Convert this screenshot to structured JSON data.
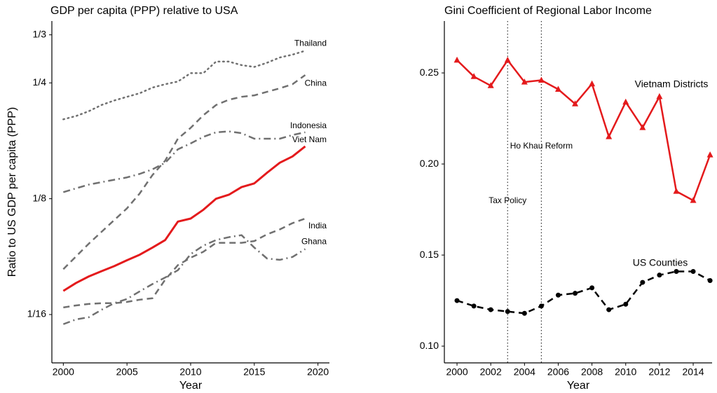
{
  "chart_data": [
    {
      "type": "line",
      "title": "GDP per capita (PPP) relative to USA",
      "xlabel": "Year",
      "ylabel": "Ratio to US GDP per capita (PPP)",
      "log_y": true,
      "x": [
        2000,
        2001,
        2002,
        2003,
        2004,
        2005,
        2006,
        2007,
        2008,
        2009,
        2010,
        2011,
        2012,
        2013,
        2014,
        2015,
        2016,
        2017,
        2018,
        2019
      ],
      "xlim": [
        1999.1,
        2020.9
      ],
      "xticks": [
        2000,
        2005,
        2010,
        2015,
        2020
      ],
      "ylim": [
        0.0468,
        0.362
      ],
      "yticks": [
        {
          "value": 0.0625,
          "label": "1/16"
        },
        {
          "value": 0.125,
          "label": "1/8"
        },
        {
          "value": 0.25,
          "label": "1/4"
        },
        {
          "value": 0.3333,
          "label": "1/3"
        }
      ],
      "series": [
        {
          "name": "Thailand",
          "color": "#707070",
          "label_color": "#333333",
          "linestyle": "dotted",
          "values": [
            0.201,
            0.205,
            0.211,
            0.219,
            0.225,
            0.23,
            0.235,
            0.243,
            0.248,
            0.252,
            0.265,
            0.265,
            0.284,
            0.284,
            0.278,
            0.275,
            0.282,
            0.291,
            0.296,
            0.303
          ]
        },
        {
          "name": "China",
          "color": "#707070",
          "label_color": "#333333",
          "linestyle": "dashed",
          "values": [
            0.082,
            0.0885,
            0.0955,
            0.1025,
            0.11,
            0.118,
            0.129,
            0.144,
            0.157,
            0.179,
            0.191,
            0.206,
            0.219,
            0.226,
            0.23,
            0.232,
            0.237,
            0.242,
            0.248,
            0.262
          ]
        },
        {
          "name": "Indonesia",
          "color": "#707070",
          "label_color": "#333333",
          "linestyle": "dashdot",
          "values": [
            0.13,
            0.133,
            0.136,
            0.138,
            0.14,
            0.142,
            0.145,
            0.149,
            0.155,
            0.168,
            0.174,
            0.181,
            0.186,
            0.187,
            0.185,
            0.179,
            0.179,
            0.179,
            0.183,
            0.186
          ]
        },
        {
          "name": "India",
          "color": "#707070",
          "label_color": "#333333",
          "linestyle": "dashed",
          "values": [
            0.0652,
            0.066,
            0.0666,
            0.0669,
            0.0669,
            0.0674,
            0.0683,
            0.0689,
            0.077,
            0.084,
            0.0878,
            0.091,
            0.096,
            0.096,
            0.096,
            0.097,
            0.101,
            0.104,
            0.108,
            0.111
          ]
        },
        {
          "name": "Ghana",
          "color": "#707070",
          "label_color": "#333333",
          "linestyle": "dashdot",
          "values": [
            0.059,
            0.0607,
            0.0615,
            0.0643,
            0.0669,
            0.0686,
            0.0718,
            0.075,
            0.078,
            0.0815,
            0.0897,
            0.0944,
            0.0976,
            0.0993,
            0.1005,
            0.0933,
            0.0874,
            0.0867,
            0.0882,
            0.0925
          ]
        },
        {
          "name": "Viet Nam",
          "color": "#e41a1c",
          "label_color": "#e41a1c",
          "linestyle": "solid",
          "values": [
            0.072,
            0.0755,
            0.0785,
            0.081,
            0.0835,
            0.0865,
            0.0894,
            0.0933,
            0.0976,
            0.109,
            0.111,
            0.117,
            0.125,
            0.128,
            0.134,
            0.137,
            0.146,
            0.155,
            0.161,
            0.171
          ]
        }
      ]
    },
    {
      "type": "line",
      "title": "Gini Coefficient of Regional Labor Income",
      "xlabel": "Year",
      "log_y": false,
      "x": [
        2000,
        2001,
        2002,
        2003,
        2004,
        2005,
        2006,
        2007,
        2008,
        2009,
        2010,
        2011,
        2012,
        2013,
        2014,
        2015
      ],
      "xlim": [
        1999.25,
        2015.12
      ],
      "xticks": [
        2000,
        2002,
        2004,
        2006,
        2008,
        2010,
        2012,
        2014
      ],
      "ylim": [
        0.0908,
        0.2785
      ],
      "yticks": [
        {
          "value": 0.1,
          "label": "0.10"
        },
        0.15,
        {
          "value": 0.2,
          "label": "0.20"
        },
        0.25
      ],
      "vlines": [
        {
          "x": 2003,
          "label": "Tax Policy"
        },
        {
          "x": 2005,
          "label": "Ho Khau Reform"
        }
      ],
      "series": [
        {
          "name": "Vietnam Districts",
          "color": "#e41a1c",
          "label_color": "#e41a1c",
          "linestyle": "solid",
          "marker": "triangle",
          "values": [
            0.257,
            0.248,
            0.243,
            0.257,
            0.245,
            0.246,
            0.241,
            0.233,
            0.244,
            0.215,
            0.234,
            0.22,
            0.237,
            0.185,
            0.18,
            0.205
          ]
        },
        {
          "name": "US Counties",
          "color": "#000000",
          "label_color": "#000000",
          "linestyle": "dashed",
          "marker": "circle",
          "values": [
            0.125,
            0.122,
            0.12,
            0.119,
            0.118,
            0.122,
            0.128,
            0.129,
            0.132,
            0.12,
            0.123,
            0.135,
            0.139,
            0.141,
            0.141,
            0.136
          ]
        }
      ]
    }
  ]
}
